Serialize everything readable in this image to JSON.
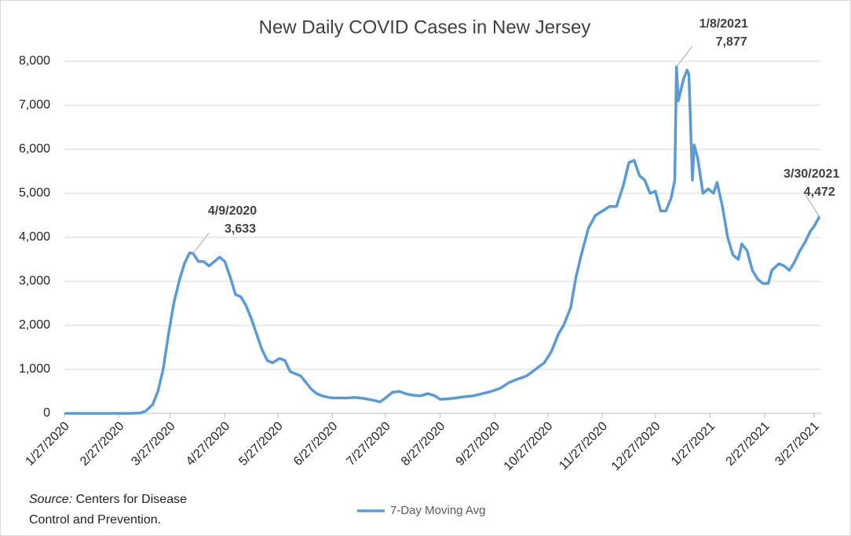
{
  "chart_data": {
    "type": "line",
    "title": "New Daily COVID Cases in New Jersey",
    "x": [
      "1/27/2020",
      "2/10/2020",
      "2/24/2020",
      "3/5/2020",
      "3/10/2020",
      "3/13/2020",
      "3/17/2020",
      "3/20/2020",
      "3/23/2020",
      "3/26/2020",
      "3/29/2020",
      "4/1/2020",
      "4/4/2020",
      "4/7/2020",
      "4/9/2020",
      "4/12/2020",
      "4/15/2020",
      "4/18/2020",
      "4/21/2020",
      "4/24/2020",
      "4/27/2020",
      "4/30/2020",
      "5/3/2020",
      "5/6/2020",
      "5/9/2020",
      "5/12/2020",
      "5/15/2020",
      "5/18/2020",
      "5/21/2020",
      "5/24/2020",
      "5/28/2020",
      "5/31/2020",
      "6/3/2020",
      "6/6/2020",
      "6/9/2020",
      "6/12/2020",
      "6/15/2020",
      "6/18/2020",
      "6/21/2020",
      "6/24/2020",
      "6/27/2020",
      "7/1/2020",
      "7/5/2020",
      "7/10/2020",
      "7/15/2020",
      "7/20/2020",
      "7/24/2020",
      "7/27/2020",
      "7/31/2020",
      "8/4/2020",
      "8/8/2020",
      "8/12/2020",
      "8/16/2020",
      "8/20/2020",
      "8/24/2020",
      "8/27/2020",
      "8/31/2020",
      "9/5/2020",
      "9/10/2020",
      "9/15/2020",
      "9/20/2020",
      "9/25/2020",
      "9/30/2020",
      "10/5/2020",
      "10/10/2020",
      "10/15/2020",
      "10/20/2020",
      "10/25/2020",
      "10/29/2020",
      "11/2/2020",
      "11/5/2020",
      "11/9/2020",
      "11/12/2020",
      "11/15/2020",
      "11/19/2020",
      "11/23/2020",
      "11/27/2020",
      "12/1/2020",
      "12/5/2020",
      "12/9/2020",
      "12/12/2020",
      "12/15/2020",
      "12/18/2020",
      "12/21/2020",
      "12/24/2020",
      "12/27/2020",
      "12/30/2020",
      "1/2/2021",
      "1/5/2021",
      "1/7/2021",
      "1/8/2021",
      "1/9/2021",
      "1/12/2021",
      "1/14/2021",
      "1/15/2021",
      "1/17/2021",
      "1/18/2021",
      "1/20/2021",
      "1/23/2021",
      "1/26/2021",
      "1/29/2021",
      "1/31/2021",
      "2/3/2021",
      "2/6/2021",
      "2/9/2021",
      "2/12/2021",
      "2/14/2021",
      "2/17/2021",
      "2/20/2021",
      "2/23/2021",
      "2/26/2021",
      "3/1/2021",
      "3/3/2021",
      "3/7/2021",
      "3/10/2021",
      "3/13/2021",
      "3/16/2021",
      "3/19/2021",
      "3/22/2021",
      "3/25/2021",
      "3/27/2021",
      "3/30/2021"
    ],
    "series": [
      {
        "name": "7-Day Moving Avg",
        "color": "#5b9bd5",
        "values": [
          0,
          0,
          0,
          0,
          10,
          50,
          200,
          500,
          1000,
          1800,
          2500,
          3000,
          3400,
          3650,
          3633,
          3450,
          3450,
          3350,
          3450,
          3550,
          3450,
          3100,
          2700,
          2650,
          2450,
          2150,
          1800,
          1450,
          1200,
          1150,
          1250,
          1200,
          950,
          900,
          850,
          700,
          550,
          450,
          400,
          370,
          350,
          350,
          350,
          360,
          340,
          300,
          260,
          350,
          480,
          500,
          440,
          410,
          400,
          450,
          400,
          320,
          330,
          350,
          380,
          400,
          450,
          500,
          570,
          700,
          780,
          850,
          1000,
          1150,
          1400,
          1800,
          2000,
          2400,
          3100,
          3600,
          4200,
          4500,
          4600,
          4700,
          4700,
          5200,
          5700,
          5750,
          5400,
          5300,
          5000,
          5050,
          4600,
          4600,
          4900,
          5300,
          7877,
          7100,
          7600,
          7800,
          7700,
          5300,
          6100,
          5800,
          5000,
          5100,
          5000,
          5250,
          4700,
          4000,
          3600,
          3500,
          3850,
          3700,
          3250,
          3050,
          2950,
          2950,
          3250,
          3400,
          3350,
          3250,
          3450,
          3700,
          3900,
          4150,
          4250,
          4472
        ]
      }
    ],
    "xlim": [
      "1/27/2020",
      "3/31/2021"
    ],
    "xticks": [
      "1/27/2020",
      "2/27/2020",
      "3/27/2020",
      "4/27/2020",
      "5/27/2020",
      "6/27/2020",
      "7/27/2020",
      "8/27/2020",
      "9/27/2020",
      "10/27/2020",
      "11/27/2020",
      "12/27/2020",
      "1/27/2021",
      "2/27/2021",
      "3/27/2021"
    ],
    "ylim": [
      0,
      8000
    ],
    "yticks": [
      0,
      {
        "value": 1000,
        "label": "1,000"
      },
      {
        "value": 2000,
        "label": "2,000"
      },
      {
        "value": 3000,
        "label": "3,000"
      },
      {
        "value": 4000,
        "label": "4,000"
      },
      {
        "value": 5000,
        "label": "5,000"
      },
      {
        "value": 6000,
        "label": "6,000"
      },
      {
        "value": 7000,
        "label": "7,000"
      },
      {
        "value": 8000,
        "label": "8,000"
      }
    ],
    "grid": true,
    "annotations": [
      {
        "x": "4/9/2020",
        "label": "3,633"
      },
      {
        "x": "1/8/2021",
        "label": "7,877"
      },
      {
        "x": "3/30/2021",
        "label": "4,472"
      }
    ],
    "source": {
      "label": "Source:",
      "lines": [
        "Centers for Disease",
        "Control and Prevention."
      ]
    },
    "legend": "bottom"
  }
}
